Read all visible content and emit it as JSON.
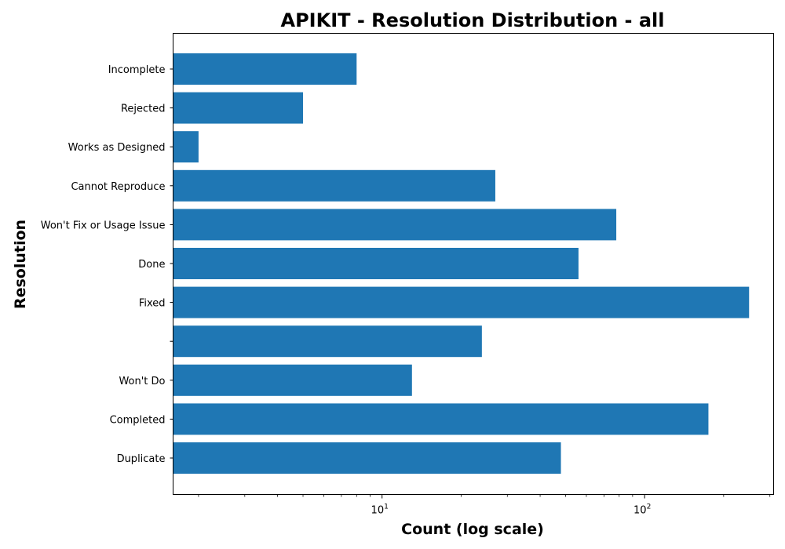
{
  "chart_data": {
    "type": "bar",
    "orientation": "horizontal",
    "title": "APIKIT - Resolution Distribution - all",
    "xlabel": "Count (log scale)",
    "ylabel": "Resolution",
    "x_scale": "log",
    "xlim": [
      1.6,
      310
    ],
    "x_ticks": [
      {
        "value": 10,
        "base": "10",
        "exp": "1"
      },
      {
        "value": 100,
        "base": "10",
        "exp": "2"
      }
    ],
    "categories": [
      "Duplicate",
      "Completed",
      "Won't Do",
      "",
      "Fixed",
      "Done",
      "Won't Fix or Usage Issue",
      "Cannot Reproduce",
      "Works as Designed",
      "Rejected",
      "Incomplete"
    ],
    "values": [
      48,
      175,
      13,
      24,
      250,
      56,
      78,
      27,
      2,
      5,
      8
    ],
    "bar_color": "#1f77b4",
    "grid": false,
    "legend": "none"
  }
}
